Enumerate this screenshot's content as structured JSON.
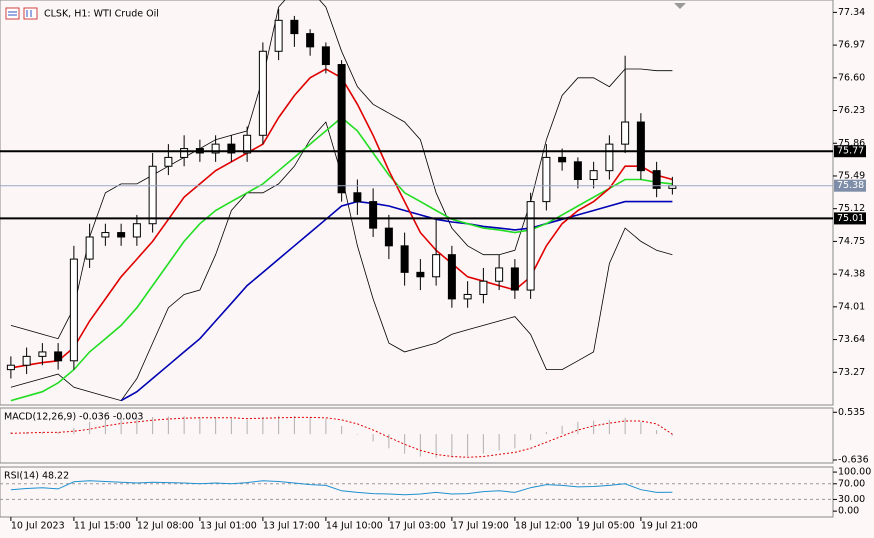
{
  "chart_data": [
    {
      "type": "candlestick",
      "title": "CLSK, H1: WTI Crude Oil",
      "categories": [
        "10 Jul 2023",
        null,
        null,
        null,
        "11 Jul 15:00",
        null,
        null,
        null,
        "12 Jul 08:00",
        null,
        null,
        null,
        "13 Jul 01:00",
        null,
        null,
        null,
        "13 Jul 17:00",
        null,
        null,
        null,
        "14 Jul 10:00",
        null,
        null,
        null,
        "17 Jul 03:00",
        null,
        null,
        null,
        "17 Jul 19:00",
        null,
        null,
        null,
        "18 Jul 12:00",
        null,
        null,
        null,
        "19 Jul 05:00",
        null,
        null,
        null,
        "19 Jul 21:00",
        null,
        null
      ],
      "open": [
        73.3,
        73.35,
        73.45,
        73.5,
        73.4,
        74.55,
        74.8,
        74.85,
        74.8,
        74.95,
        75.6,
        75.7,
        75.8,
        75.75,
        75.85,
        75.75,
        75.95,
        76.9,
        77.25,
        77.1,
        76.95,
        76.75,
        75.3,
        75.2,
        74.9,
        74.7,
        74.4,
        74.35,
        74.6,
        74.1,
        74.15,
        74.3,
        74.45,
        74.2,
        75.2,
        75.7,
        75.65,
        75.45,
        75.55,
        75.85,
        76.1,
        75.55,
        75.35
      ],
      "high": [
        73.45,
        73.55,
        73.6,
        73.6,
        74.7,
        74.95,
        74.95,
        74.95,
        75.05,
        75.75,
        75.85,
        75.95,
        75.9,
        75.95,
        75.95,
        76.05,
        77.0,
        77.38,
        77.3,
        77.15,
        77.0,
        76.8,
        75.45,
        75.35,
        75.05,
        74.85,
        74.55,
        75.0,
        74.7,
        74.3,
        74.45,
        74.6,
        74.55,
        75.3,
        75.85,
        75.8,
        75.7,
        75.65,
        75.95,
        76.85,
        76.2,
        75.65,
        75.48
      ],
      "low": [
        73.2,
        73.25,
        73.35,
        73.3,
        73.3,
        74.45,
        74.7,
        74.7,
        74.7,
        74.85,
        75.5,
        75.6,
        75.65,
        75.65,
        75.65,
        75.65,
        75.85,
        76.8,
        76.95,
        76.85,
        76.65,
        75.2,
        75.05,
        74.8,
        74.55,
        74.25,
        74.2,
        74.25,
        74.0,
        74.0,
        74.05,
        74.2,
        74.1,
        74.1,
        75.1,
        75.55,
        75.35,
        75.35,
        75.45,
        75.75,
        75.45,
        75.25,
        75.28
      ],
      "close": [
        73.35,
        73.45,
        73.5,
        73.4,
        74.55,
        74.8,
        74.85,
        74.8,
        74.95,
        75.6,
        75.7,
        75.8,
        75.75,
        75.85,
        75.75,
        75.95,
        76.9,
        77.25,
        77.1,
        76.95,
        76.75,
        75.3,
        75.2,
        74.9,
        74.7,
        74.4,
        74.35,
        74.6,
        74.1,
        74.15,
        74.3,
        74.45,
        74.2,
        75.2,
        75.7,
        75.65,
        75.45,
        75.55,
        75.85,
        76.1,
        75.55,
        75.35,
        75.38
      ],
      "series": [
        {
          "color": "#000000",
          "values": [
            73.8,
            73.75,
            73.7,
            73.65,
            74.0,
            74.8,
            75.3,
            75.4,
            75.4,
            75.5,
            75.6,
            75.7,
            75.8,
            75.9,
            75.95,
            76.0,
            76.6,
            77.4,
            77.6,
            77.6,
            77.4,
            76.9,
            76.5,
            76.3,
            76.2,
            76.1,
            75.9,
            75.3,
            74.9,
            74.7,
            74.6,
            74.6,
            74.65,
            75.2,
            75.9,
            76.4,
            76.6,
            76.6,
            76.5,
            76.7,
            76.7,
            76.68,
            76.68
          ]
        },
        {
          "color": "#000000",
          "values": [
            73.1,
            73.15,
            73.2,
            73.25,
            73.1,
            73.05,
            73.0,
            72.95,
            73.2,
            73.6,
            74.0,
            74.15,
            74.2,
            74.6,
            75.1,
            75.3,
            75.3,
            75.4,
            75.6,
            75.9,
            76.1,
            75.5,
            74.7,
            74.1,
            73.6,
            73.5,
            73.55,
            73.6,
            73.7,
            73.75,
            73.8,
            73.85,
            73.9,
            73.7,
            73.3,
            73.3,
            73.4,
            73.5,
            74.5,
            74.9,
            74.75,
            74.65,
            74.6
          ]
        },
        {
          "color": "#0000b4",
          "values": [
            null,
            null,
            null,
            null,
            null,
            null,
            null,
            72.95,
            73.05,
            73.2,
            73.35,
            73.5,
            73.65,
            73.85,
            74.05,
            74.25,
            74.4,
            74.55,
            74.7,
            74.85,
            75.0,
            75.15,
            75.2,
            75.18,
            75.15,
            75.1,
            75.05,
            75.0,
            74.97,
            74.95,
            74.92,
            74.9,
            74.88,
            74.9,
            74.95,
            75.0,
            75.05,
            75.1,
            75.15,
            75.2,
            75.2,
            75.2,
            75.2
          ]
        },
        {
          "color": "#22dd22",
          "values": [
            72.95,
            73.0,
            73.05,
            73.15,
            73.3,
            73.5,
            73.65,
            73.8,
            74.0,
            74.25,
            74.5,
            74.75,
            74.95,
            75.1,
            75.2,
            75.3,
            75.4,
            75.55,
            75.7,
            75.85,
            76.0,
            76.15,
            76.0,
            75.75,
            75.5,
            75.3,
            75.2,
            75.1,
            75.0,
            74.95,
            74.9,
            74.88,
            74.85,
            74.88,
            74.95,
            75.05,
            75.15,
            75.25,
            75.35,
            75.45,
            75.45,
            75.42,
            75.4
          ]
        },
        {
          "color": "#e00000",
          "values": [
            73.32,
            73.35,
            73.38,
            73.4,
            73.55,
            73.85,
            74.1,
            74.35,
            74.55,
            74.75,
            75.0,
            75.25,
            75.4,
            75.55,
            75.65,
            75.75,
            75.85,
            76.15,
            76.4,
            76.6,
            76.7,
            76.6,
            76.3,
            75.95,
            75.55,
            75.2,
            74.85,
            74.65,
            74.5,
            74.35,
            74.3,
            74.25,
            74.2,
            74.35,
            74.7,
            74.95,
            75.1,
            75.2,
            75.35,
            75.6,
            75.6,
            75.5,
            75.45
          ]
        }
      ],
      "levels": [
        75.77,
        75.01
      ],
      "last_price": 75.38,
      "ylim": [
        72.9,
        77.48
      ],
      "yticks": [
        77.34,
        76.97,
        {
          "value": 76.6,
          "label": "76.60"
        },
        76.23,
        75.86,
        75.49,
        75.12,
        74.75,
        74.38,
        74.01,
        73.64,
        73.27
      ]
    },
    {
      "type": "macd",
      "label": "MACD(12,26,9) -0.036 -0.003",
      "values": [
        0.05,
        0.05,
        0.05,
        0.05,
        0.15,
        0.3,
        0.38,
        0.4,
        0.4,
        0.42,
        0.43,
        0.44,
        0.42,
        0.4,
        0.38,
        0.35,
        0.42,
        0.45,
        0.44,
        0.42,
        0.38,
        0.2,
        0.0,
        -0.18,
        -0.35,
        -0.48,
        -0.55,
        -0.58,
        -0.58,
        -0.55,
        -0.48,
        -0.4,
        -0.35,
        -0.15,
        0.05,
        0.2,
        0.3,
        0.33,
        0.35,
        0.4,
        0.3,
        0.1,
        -0.036
      ],
      "color": "#b0b0b0",
      "signal": [
        0.02,
        0.03,
        0.04,
        0.04,
        0.07,
        0.12,
        0.2,
        0.26,
        0.3,
        0.34,
        0.37,
        0.39,
        0.4,
        0.4,
        0.4,
        0.38,
        0.39,
        0.4,
        0.41,
        0.41,
        0.4,
        0.35,
        0.25,
        0.1,
        -0.08,
        -0.25,
        -0.4,
        -0.5,
        -0.55,
        -0.57,
        -0.55,
        -0.5,
        -0.45,
        -0.35,
        -0.2,
        -0.05,
        0.1,
        0.2,
        0.27,
        0.32,
        0.32,
        0.25,
        -0.003
      ],
      "signal_color": "#e00000",
      "ylim": [
        -0.71,
        0.64
      ],
      "yticks": [
        0.535,
        -0.636
      ]
    },
    {
      "type": "rsi",
      "label": "RSI(14) 48.22",
      "values": [
        55,
        58,
        60,
        57,
        75,
        78,
        76,
        74,
        72,
        74,
        73,
        72,
        70,
        72,
        70,
        73,
        78,
        76,
        72,
        68,
        66,
        52,
        48,
        45,
        44,
        42,
        44,
        48,
        44,
        45,
        50,
        52,
        48,
        60,
        68,
        66,
        62,
        63,
        66,
        70,
        55,
        48,
        48.22
      ],
      "color": "#1e90d0",
      "grid": true,
      "ylim": [
        -15,
        113
      ],
      "yticks": [
        {
          "value": 100,
          "label": "100.00"
        },
        {
          "value": 70,
          "label": "70.00"
        },
        {
          "value": 30,
          "label": "30.00"
        },
        {
          "value": 0,
          "label": "0.00"
        }
      ]
    }
  ]
}
